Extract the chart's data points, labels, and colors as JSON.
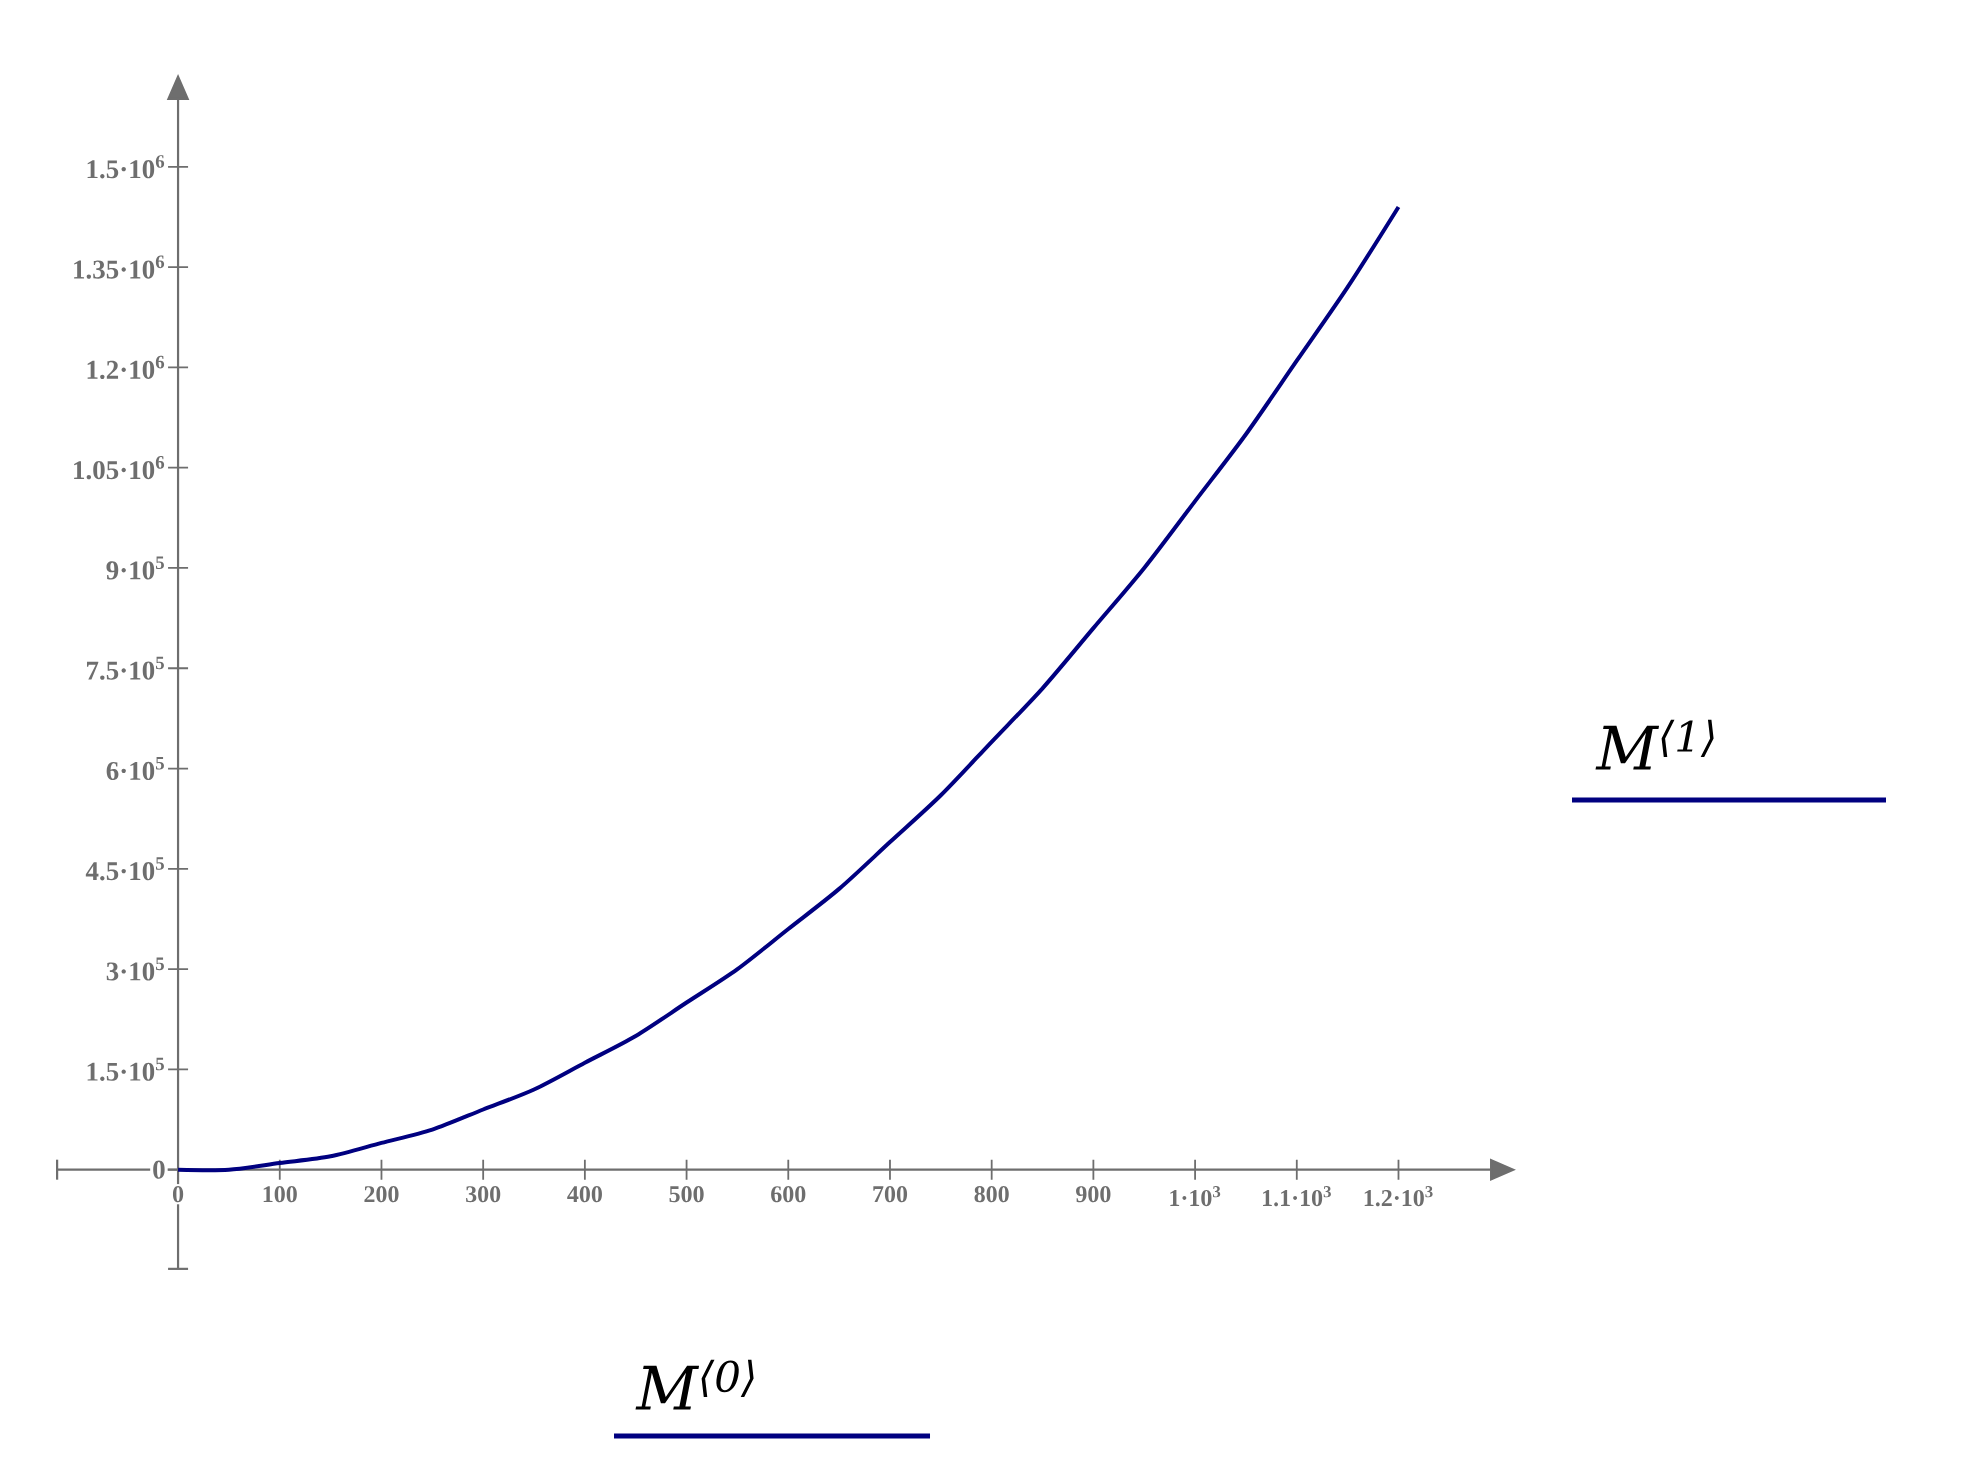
{
  "chart_data": {
    "type": "line",
    "xlabel": "M$^{⟨0⟩}$",
    "ylabel": "M$^{⟨1⟩}$",
    "x": [
      0,
      50,
      100,
      150,
      200,
      250,
      300,
      350,
      400,
      450,
      500,
      550,
      600,
      650,
      700,
      750,
      800,
      850,
      900,
      950,
      1000,
      1050,
      1100,
      1150,
      1200
    ],
    "series": [
      {
        "color": "#000080",
        "values": [
          0,
          0,
          10000,
          20000,
          40000,
          60000,
          90000,
          120000,
          160000,
          200000,
          250000,
          300000,
          360000,
          420000,
          490000,
          560000,
          640000,
          720000,
          810000,
          900000,
          1000000,
          1100000,
          1210000,
          1320000,
          1440000
        ]
      }
    ],
    "xlim": [
      -120,
      1290
    ],
    "ylim": [
      -150000,
      1600000
    ],
    "xticks": [
      0,
      100,
      200,
      300,
      400,
      500,
      600,
      700,
      800,
      900,
      {
        "value": 1000,
        "label": "1·10$^{3}$"
      },
      {
        "value": 1100,
        "label": "1.1·10$^{3}$"
      },
      {
        "value": 1200,
        "label": "1.2·10$^{3}$"
      }
    ],
    "yticks": [
      0,
      {
        "value": 150000,
        "label": "1.5·10$^{5}$"
      },
      {
        "value": 300000,
        "label": "3·10$^{5}$"
      },
      {
        "value": 450000,
        "label": "4.5·10$^{5}$"
      },
      {
        "value": 600000,
        "label": "6·10$^{5}$"
      },
      {
        "value": 750000,
        "label": "7.5·10$^{5}$"
      },
      {
        "value": 900000,
        "label": "9·10$^{5}$"
      },
      {
        "value": 1050000,
        "label": "1.05·10$^{6}$"
      },
      {
        "value": 1200000,
        "label": "1.2·10$^{6}$"
      },
      {
        "value": 1350000,
        "label": "1.35·10$^{6}$"
      },
      {
        "value": 1500000,
        "label": "1.5·10$^{6}$"
      }
    ],
    "grid": false,
    "marker": "none",
    "line_style": "solid"
  }
}
